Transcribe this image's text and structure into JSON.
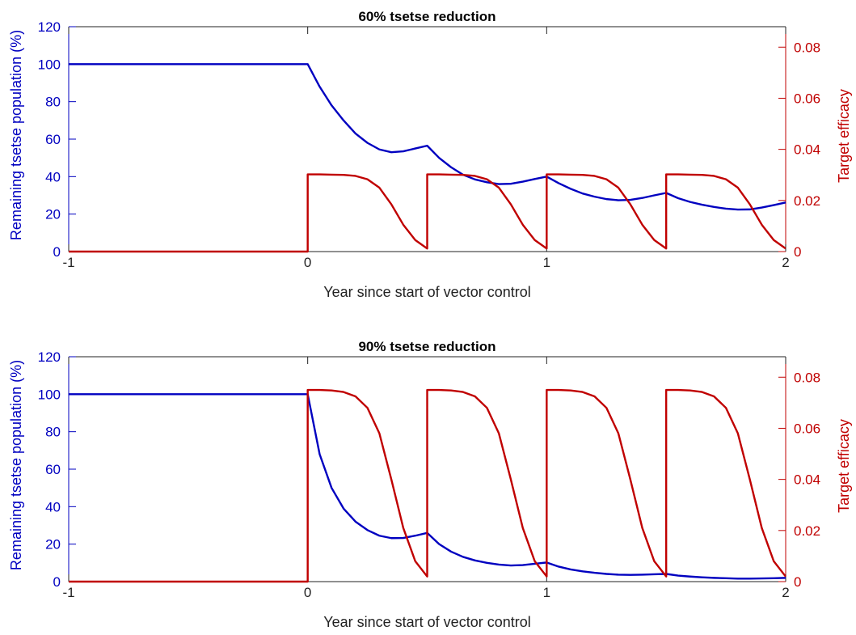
{
  "colors": {
    "left_axis": "#0000c0",
    "right_axis": "#c00000",
    "axis_black": "#222222",
    "background": "#ffffff"
  },
  "chart_data": [
    {
      "type": "line",
      "title": "60% tsetse reduction",
      "xlabel": "Year since start of vector control",
      "ylabel_left": "Remaining tsetse population (%)",
      "ylabel_right": "Target efficacy",
      "xlim": [
        -1,
        2
      ],
      "ylim_left": [
        0,
        120
      ],
      "ylim_right": [
        0,
        0.088
      ],
      "x_ticks": [
        -1,
        0,
        1,
        2
      ],
      "x_tick_labels": [
        "-1",
        "0",
        "1",
        "2"
      ],
      "y_left_ticks": [
        0,
        20,
        40,
        60,
        80,
        100,
        120
      ],
      "y_left_tick_labels": [
        "0",
        "20",
        "40",
        "60",
        "80",
        "100",
        "120"
      ],
      "y_right_ticks": [
        0,
        0.02,
        0.04,
        0.06,
        0.08
      ],
      "y_right_tick_labels": [
        "0",
        "0.02",
        "0.04",
        "0.06",
        "0.08"
      ],
      "grid": false,
      "series": [
        {
          "axis": "left",
          "color": "#0000c0",
          "x": [
            -1,
            0,
            0.05,
            0.1,
            0.15,
            0.2,
            0.25,
            0.3,
            0.35,
            0.4,
            0.45,
            0.5,
            0.55,
            0.6,
            0.65,
            0.7,
            0.75,
            0.8,
            0.85,
            0.9,
            0.95,
            1.0,
            1.05,
            1.1,
            1.15,
            1.2,
            1.25,
            1.3,
            1.35,
            1.4,
            1.45,
            1.5,
            1.55,
            1.6,
            1.65,
            1.7,
            1.75,
            1.8,
            1.85,
            1.9,
            1.95,
            2.0
          ],
          "y": [
            100,
            100,
            88,
            78,
            70,
            63,
            58,
            54.5,
            53,
            53.5,
            55,
            56.5,
            50,
            45,
            41,
            38.5,
            37,
            36,
            36.2,
            37.3,
            38.7,
            40,
            36.5,
            33.5,
            31,
            29.3,
            28,
            27.4,
            27.6,
            28.6,
            30,
            31.3,
            28.5,
            26.5,
            25,
            23.8,
            22.9,
            22.4,
            22.5,
            23.5,
            24.8,
            26.2
          ]
        },
        {
          "axis": "right",
          "color": "#c00000",
          "x": [
            -1,
            0,
            0,
            0.05,
            0.1,
            0.15,
            0.2,
            0.25,
            0.3,
            0.35,
            0.4,
            0.45,
            0.5,
            0.5,
            0.55,
            0.6,
            0.65,
            0.7,
            0.75,
            0.8,
            0.85,
            0.9,
            0.95,
            1.0,
            1.0,
            1.05,
            1.1,
            1.15,
            1.2,
            1.25,
            1.3,
            1.35,
            1.4,
            1.45,
            1.5,
            1.5,
            1.55,
            1.6,
            1.65,
            1.7,
            1.75,
            1.8,
            1.85,
            1.9,
            1.95,
            2.0
          ],
          "y": [
            0,
            0,
            0.0302,
            0.0302,
            0.0301,
            0.03,
            0.0296,
            0.0283,
            0.025,
            0.0185,
            0.0105,
            0.0045,
            0.0012,
            0.0302,
            0.0302,
            0.0301,
            0.03,
            0.0296,
            0.0283,
            0.025,
            0.0185,
            0.0105,
            0.0045,
            0.0012,
            0.0302,
            0.0302,
            0.0301,
            0.03,
            0.0296,
            0.0283,
            0.025,
            0.0185,
            0.0105,
            0.0045,
            0.0012,
            0.0302,
            0.0302,
            0.0301,
            0.03,
            0.0296,
            0.0283,
            0.025,
            0.0185,
            0.0105,
            0.0045,
            0.0012
          ]
        }
      ]
    },
    {
      "type": "line",
      "title": "90% tsetse reduction",
      "xlabel": "Year since start of vector control",
      "ylabel_left": "Remaining tsetse population (%)",
      "ylabel_right": "Target efficacy",
      "xlim": [
        -1,
        2
      ],
      "ylim_left": [
        0,
        120
      ],
      "ylim_right": [
        0,
        0.088
      ],
      "x_ticks": [
        -1,
        0,
        1,
        2
      ],
      "x_tick_labels": [
        "-1",
        "0",
        "1",
        "2"
      ],
      "y_left_ticks": [
        0,
        20,
        40,
        60,
        80,
        100,
        120
      ],
      "y_left_tick_labels": [
        "0",
        "20",
        "40",
        "60",
        "80",
        "100",
        "120"
      ],
      "y_right_ticks": [
        0,
        0.02,
        0.04,
        0.06,
        0.08
      ],
      "y_right_tick_labels": [
        "0",
        "0.02",
        "0.04",
        "0.06",
        "0.08"
      ],
      "grid": false,
      "series": [
        {
          "axis": "left",
          "color": "#0000c0",
          "x": [
            -1,
            0,
            0.05,
            0.1,
            0.15,
            0.2,
            0.25,
            0.3,
            0.35,
            0.4,
            0.45,
            0.5,
            0.55,
            0.6,
            0.65,
            0.7,
            0.75,
            0.8,
            0.85,
            0.9,
            0.95,
            1.0,
            1.05,
            1.1,
            1.15,
            1.2,
            1.25,
            1.3,
            1.35,
            1.4,
            1.45,
            1.5,
            1.55,
            1.6,
            1.65,
            1.7,
            1.75,
            1.8,
            1.85,
            1.9,
            1.95,
            2.0
          ],
          "y": [
            100,
            100,
            68,
            50,
            39,
            32,
            27.5,
            24.5,
            23.2,
            23.3,
            24.5,
            26,
            20,
            16,
            13.2,
            11.3,
            10,
            9.1,
            8.6,
            8.8,
            9.5,
            10.2,
            8,
            6.5,
            5.5,
            4.7,
            4.1,
            3.7,
            3.6,
            3.7,
            3.9,
            4.1,
            3.2,
            2.7,
            2.3,
            2.0,
            1.8,
            1.6,
            1.6,
            1.7,
            1.8,
            2.0
          ]
        },
        {
          "axis": "right",
          "color": "#c00000",
          "x": [
            -1,
            0,
            0,
            0.05,
            0.1,
            0.15,
            0.2,
            0.25,
            0.3,
            0.35,
            0.4,
            0.45,
            0.5,
            0.5,
            0.55,
            0.6,
            0.65,
            0.7,
            0.75,
            0.8,
            0.85,
            0.9,
            0.95,
            1.0,
            1.0,
            1.05,
            1.1,
            1.15,
            1.2,
            1.25,
            1.3,
            1.35,
            1.4,
            1.45,
            1.5,
            1.5,
            1.55,
            1.6,
            1.65,
            1.7,
            1.75,
            1.8,
            1.85,
            1.9,
            1.95,
            2.0
          ],
          "y": [
            0,
            0,
            0.075,
            0.075,
            0.0748,
            0.0742,
            0.0725,
            0.068,
            0.058,
            0.04,
            0.021,
            0.008,
            0.002,
            0.075,
            0.075,
            0.0748,
            0.0742,
            0.0725,
            0.068,
            0.058,
            0.04,
            0.021,
            0.008,
            0.002,
            0.075,
            0.075,
            0.0748,
            0.0742,
            0.0725,
            0.068,
            0.058,
            0.04,
            0.021,
            0.008,
            0.002,
            0.075,
            0.075,
            0.0748,
            0.0742,
            0.0725,
            0.068,
            0.058,
            0.04,
            0.021,
            0.008,
            0.002
          ]
        }
      ]
    }
  ]
}
